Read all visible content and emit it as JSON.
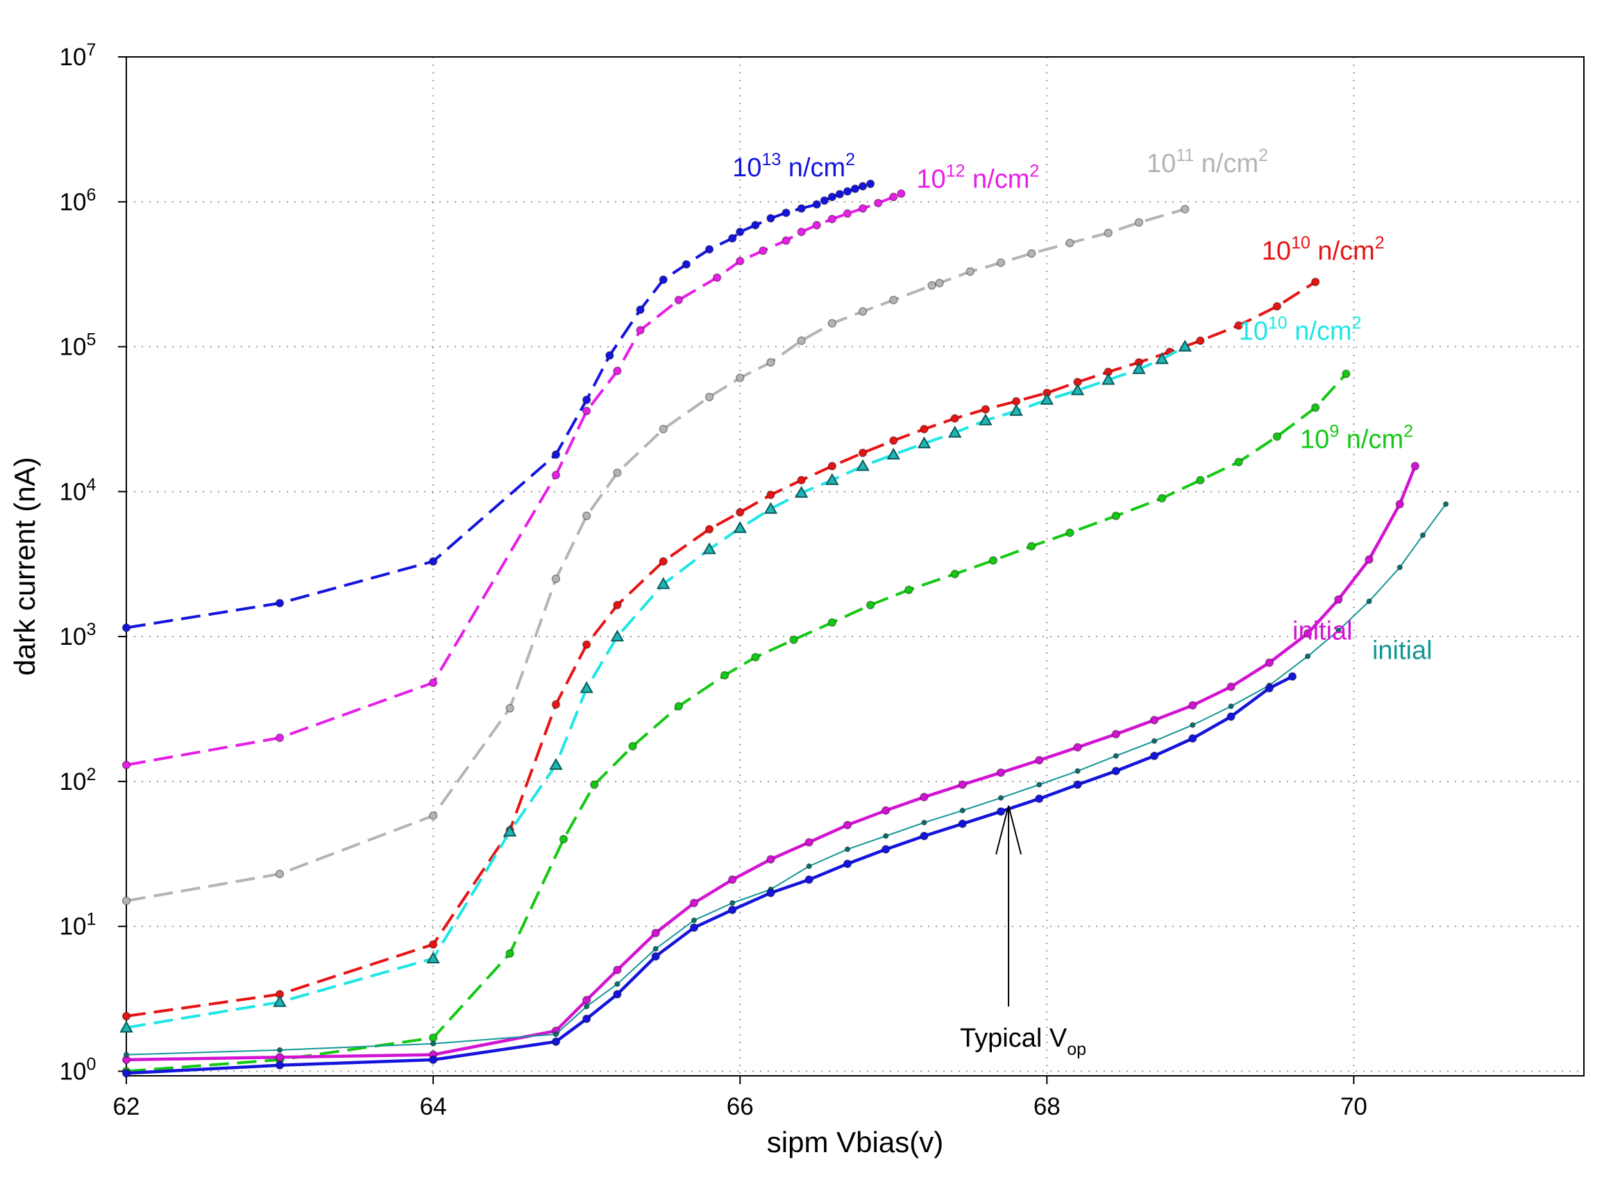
{
  "chart_data": {
    "type": "line",
    "xlabel": "sipm Vbias(v)",
    "ylabel": "dark current (nA)",
    "xlim": [
      62,
      71.5
    ],
    "ylim": [
      0.93,
      10000000
    ],
    "y_scale": "log",
    "grid": true,
    "x_ticks": [
      "62",
      "64",
      "66",
      "68",
      "70"
    ],
    "y_ticks": [
      {
        "base": "10",
        "exp": "0"
      },
      {
        "base": "10",
        "exp": "1"
      },
      {
        "base": "10",
        "exp": "2"
      },
      {
        "base": "10",
        "exp": "3"
      },
      {
        "base": "10",
        "exp": "4"
      },
      {
        "base": "10",
        "exp": "5"
      },
      {
        "base": "10",
        "exp": "6"
      },
      {
        "base": "10",
        "exp": "7"
      }
    ],
    "series": [
      {
        "label": {
          "base": "10",
          "exp": "13",
          "unit": " n/cm",
          "unit_exp": "2"
        },
        "color": "#1414dc",
        "dashed": true,
        "marker": "dot",
        "x": [
          62.0,
          63.0,
          64.0,
          64.8,
          65.0,
          65.15,
          65.35,
          65.5,
          65.65,
          65.8,
          65.95,
          66.0,
          66.1,
          66.2,
          66.3,
          66.4,
          66.5,
          66.55,
          66.6,
          66.65,
          66.7,
          66.75,
          66.8,
          66.85
        ],
        "y": [
          1150,
          1700,
          3300,
          18000,
          43000,
          87000,
          180000,
          290000,
          370000,
          470000,
          560000,
          620000,
          690000,
          770000,
          840000,
          900000,
          960000,
          1020000,
          1080000,
          1130000,
          1180000,
          1230000,
          1280000,
          1330000
        ],
        "label_at": [
          65.95,
          1500000
        ]
      },
      {
        "label": {
          "base": "10",
          "exp": "12",
          "unit": " n/cm",
          "unit_exp": "2"
        },
        "color": "#e61ee6",
        "dashed": true,
        "marker": "dot",
        "x": [
          62.0,
          63.0,
          64.0,
          64.8,
          65.0,
          65.2,
          65.35,
          65.6,
          65.85,
          66.0,
          66.15,
          66.3,
          66.4,
          66.5,
          66.6,
          66.7,
          66.8,
          66.9,
          67.0,
          67.05
        ],
        "y": [
          130,
          200,
          480,
          13000,
          36000,
          68000,
          130000,
          210000,
          300000,
          390000,
          460000,
          540000,
          620000,
          690000,
          760000,
          830000,
          900000,
          980000,
          1080000,
          1140000
        ],
        "label_at": [
          67.15,
          1250000
        ]
      },
      {
        "label": {
          "base": "10",
          "exp": "11",
          "unit": " n/cm",
          "unit_exp": "2"
        },
        "color": "#b4b4b4",
        "dashed": true,
        "marker": "dot",
        "x": [
          62.0,
          63.0,
          64.0,
          64.5,
          64.8,
          65.0,
          65.2,
          65.5,
          65.8,
          66.0,
          66.2,
          66.4,
          66.6,
          66.8,
          67.0,
          67.25,
          67.3,
          67.5,
          67.7,
          67.9,
          68.15,
          68.4,
          68.6,
          68.9
        ],
        "y": [
          15,
          23,
          58,
          320,
          2500,
          6800,
          13500,
          27000,
          45000,
          61000,
          78000,
          110000,
          145000,
          175000,
          210000,
          265000,
          275000,
          330000,
          380000,
          440000,
          520000,
          610000,
          720000,
          890000
        ],
        "label_at": [
          68.65,
          1600000
        ]
      },
      {
        "label": {
          "base": "10",
          "exp": "10",
          "unit": " n/cm",
          "unit_exp": "2"
        },
        "color": "#e61414",
        "dashed": true,
        "marker": "dot",
        "x": [
          62.0,
          63.0,
          64.0,
          64.5,
          64.8,
          65.0,
          65.2,
          65.5,
          65.8,
          66.0,
          66.2,
          66.4,
          66.6,
          66.8,
          67.0,
          67.2,
          67.4,
          67.6,
          67.8,
          68.0,
          68.2,
          68.4,
          68.6,
          68.8,
          69.0,
          69.25,
          69.5,
          69.75
        ],
        "y": [
          2.4,
          3.4,
          7.5,
          46,
          340,
          880,
          1650,
          3300,
          5500,
          7200,
          9500,
          12000,
          15000,
          18500,
          22500,
          27000,
          32000,
          37000,
          42000,
          48000,
          57000,
          67000,
          78000,
          92000,
          110000,
          140000,
          190000,
          280000
        ],
        "label_at": [
          69.4,
          400000
        ]
      },
      {
        "label": {
          "base": "10",
          "exp": "10",
          "unit": " n/cm",
          "unit_exp": "2"
        },
        "color": "#1ee6e6",
        "dashed": true,
        "marker": "triangle",
        "x": [
          62.0,
          63.0,
          64.0,
          64.5,
          64.8,
          65.0,
          65.2,
          65.5,
          65.8,
          66.0,
          66.2,
          66.4,
          66.6,
          66.8,
          67.0,
          67.2,
          67.4,
          67.6,
          67.8,
          68.0,
          68.2,
          68.4,
          68.6,
          68.75,
          68.9
        ],
        "y": [
          2.0,
          3.0,
          6.0,
          45,
          130,
          440,
          1000,
          2300,
          4000,
          5600,
          7600,
          9800,
          12000,
          15000,
          18000,
          21500,
          25500,
          31000,
          36000,
          43000,
          50000,
          59000,
          70000,
          82000,
          100000
        ],
        "label_at": [
          69.25,
          112000
        ]
      },
      {
        "label": {
          "base": "10",
          "exp": "9",
          "unit": " n/cm",
          "unit_exp": "2"
        },
        "color": "#14c814",
        "dashed": true,
        "marker": "dot",
        "x": [
          62.0,
          63.0,
          64.0,
          64.5,
          64.85,
          65.05,
          65.3,
          65.6,
          65.9,
          66.1,
          66.35,
          66.6,
          66.85,
          67.1,
          67.4,
          67.65,
          67.9,
          68.15,
          68.45,
          68.75,
          69.0,
          69.25,
          69.5,
          69.75,
          69.95
        ],
        "y": [
          1.0,
          1.2,
          1.7,
          6.5,
          40,
          95,
          175,
          330,
          540,
          720,
          950,
          1250,
          1650,
          2100,
          2700,
          3350,
          4200,
          5200,
          6800,
          9000,
          12000,
          16000,
          24000,
          38000,
          65000
        ],
        "label_at": [
          69.65,
          20000
        ]
      },
      {
        "label": {
          "text": "initial"
        },
        "color": "#d214d2",
        "dashed": false,
        "marker": "dot",
        "x": [
          62.0,
          63.0,
          64.0,
          64.8,
          65.0,
          65.2,
          65.45,
          65.7,
          65.95,
          66.2,
          66.45,
          66.7,
          66.95,
          67.2,
          67.45,
          67.7,
          67.95,
          68.2,
          68.45,
          68.7,
          68.95,
          69.2,
          69.45,
          69.7,
          69.9,
          70.1,
          70.3,
          70.4
        ],
        "y": [
          1.2,
          1.25,
          1.3,
          1.9,
          3.1,
          5.0,
          9.0,
          14.5,
          21,
          29,
          38,
          50,
          63,
          78,
          95,
          115,
          140,
          172,
          212,
          265,
          335,
          450,
          660,
          1050,
          1800,
          3400,
          8200,
          15000
        ],
        "label_at": [
          69.6,
          950
        ]
      },
      {
        "label": {
          "text": "initial"
        },
        "color": "#149696",
        "dashed": false,
        "marker": "smalldot",
        "x": [
          62.0,
          63.0,
          64.0,
          64.8,
          65.0,
          65.2,
          65.45,
          65.7,
          65.95,
          66.2,
          66.45,
          66.7,
          66.95,
          67.2,
          67.45,
          67.7,
          67.95,
          68.2,
          68.45,
          68.7,
          68.95,
          69.2,
          69.45,
          69.7,
          69.9,
          70.1,
          70.3,
          70.45,
          70.6
        ],
        "y": [
          1.3,
          1.4,
          1.55,
          1.8,
          2.8,
          4.0,
          7.0,
          11,
          14.5,
          18,
          26,
          34,
          42,
          52,
          63,
          77,
          95,
          118,
          150,
          190,
          245,
          330,
          460,
          730,
          1100,
          1750,
          3000,
          5000,
          8200
        ],
        "label_at": [
          70.12,
          700
        ]
      },
      {
        "label": {
          "text": ""
        },
        "color": "#1414dc",
        "dashed": false,
        "marker": "dot",
        "x": [
          62.0,
          63.0,
          64.0,
          64.8,
          65.0,
          65.2,
          65.45,
          65.7,
          65.95,
          66.2,
          66.45,
          66.7,
          66.95,
          67.2,
          67.45,
          67.7,
          67.95,
          68.2,
          68.45,
          68.7,
          68.95,
          69.2,
          69.45,
          69.6
        ],
        "y": [
          0.97,
          1.1,
          1.2,
          1.6,
          2.3,
          3.4,
          6.2,
          9.8,
          13,
          17,
          21,
          27,
          34,
          42,
          51,
          62,
          76,
          95,
          118,
          150,
          198,
          280,
          440,
          530
        ],
        "label_at": null
      }
    ],
    "annotations": [
      {
        "text": "Typical V",
        "sub": "op",
        "arrow_x": 67.75,
        "arrow_tip_y": 68,
        "arrow_tail_y": 2.8
      }
    ]
  }
}
